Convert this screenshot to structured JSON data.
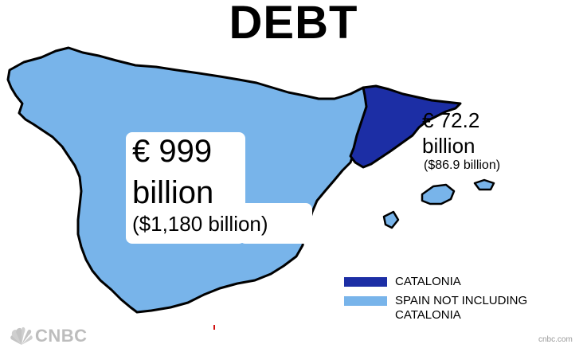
{
  "title": "DEBT",
  "regions": {
    "spain": {
      "amount": "€ 999",
      "unit": "billion",
      "usd": "($1,180 billion)",
      "color": "#78b4ea"
    },
    "catalonia": {
      "amount": "€ 72.2",
      "unit": "billion",
      "usd": "($86.9 billion)",
      "color": "#1c2ea5"
    }
  },
  "legend": {
    "items": [
      {
        "label": "CATALONIA",
        "color": "#1c2ea5"
      },
      {
        "label": "SPAIN NOT INCLUDING",
        "label_line2": "CATALONIA",
        "color": "#78b4ea"
      }
    ]
  },
  "logo": {
    "text": "CNBC",
    "icon": "peacock-icon"
  },
  "source": "cnbc.com"
}
